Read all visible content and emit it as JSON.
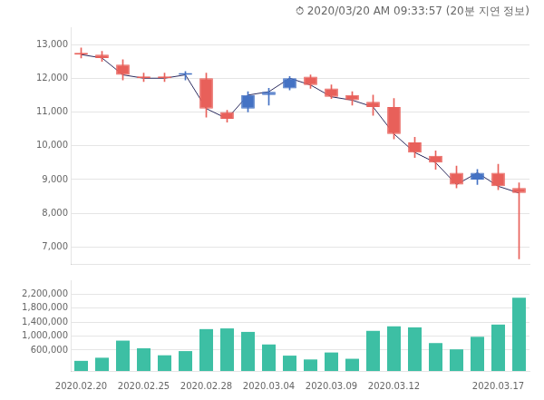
{
  "chart_data": [
    {
      "type": "candlestick",
      "title": "⏱ 2020/03/20 AM 09:33:57 (20분 지연 정보)",
      "categories": [
        null,
        null,
        null,
        null,
        null,
        null,
        null,
        null,
        null,
        null,
        null,
        null,
        null,
        null,
        null,
        null,
        null,
        null,
        null,
        null,
        null,
        null
      ],
      "series": [
        {
          "type": "candlestick",
          "open": [
            12750,
            12700,
            12400,
            12050,
            12050,
            12100,
            12000,
            11000,
            11100,
            11500,
            11700,
            12050,
            11700,
            11500,
            11300,
            11150,
            10100,
            9700,
            9200,
            9000,
            9200,
            8750
          ],
          "high": [
            12900,
            12800,
            12550,
            12150,
            12150,
            12200,
            12150,
            11050,
            11600,
            11700,
            12050,
            12100,
            11800,
            11600,
            11500,
            11400,
            10250,
            9850,
            9400,
            9300,
            9450,
            8900
          ],
          "low": [
            12600,
            12500,
            11950,
            11900,
            11900,
            11950,
            10850,
            10700,
            11000,
            11200,
            11650,
            11700,
            11400,
            11200,
            10900,
            10200,
            9650,
            9300,
            8750,
            8850,
            8700,
            6650
          ],
          "close": [
            12700,
            12600,
            12100,
            12000,
            12000,
            12100,
            11100,
            10800,
            11500,
            11600,
            12000,
            11800,
            11450,
            11350,
            11150,
            10350,
            9800,
            9500,
            8850,
            9200,
            8800,
            8600
          ],
          "colors": [
            "#E8605A",
            "#E8605A",
            "#E8605A",
            "#E8605A",
            "#E8605A",
            "#4472C4",
            "#E8605A",
            "#E8605A",
            "#4472C4",
            "#4472C4",
            "#4472C4",
            "#E8605A",
            "#E8605A",
            "#E8605A",
            "#E8605A",
            "#E8605A",
            "#E8605A",
            "#E8605A",
            "#E8605A",
            "#4472C4",
            "#E8605A",
            "#E8605A"
          ]
        },
        {
          "type": "line",
          "values": [
            12700,
            12600,
            12100,
            12000,
            12000,
            12100,
            11100,
            10800,
            11500,
            11600,
            12000,
            11800,
            11450,
            11350,
            11150,
            10350,
            9800,
            9500,
            8850,
            9200,
            8800,
            8600
          ],
          "color": "#2B2B5E"
        }
      ],
      "ylim": [
        6500,
        13500
      ],
      "yticks": [
        {
          "value": 7000,
          "label": "7,000"
        },
        {
          "value": 8000,
          "label": "8,000"
        },
        {
          "value": 9000,
          "label": "9,000"
        },
        {
          "value": 10000,
          "label": "10,000"
        },
        {
          "value": 11000,
          "label": "11,000"
        },
        {
          "value": 12000,
          "label": "12,000"
        },
        {
          "value": 13000,
          "label": "13,000"
        }
      ],
      "grid": true,
      "tick_labels": "y"
    },
    {
      "type": "bar",
      "categories": [
        "2020.02.20",
        null,
        null,
        "2020.02.25",
        null,
        null,
        "2020.02.28",
        null,
        null,
        "2020.03.04",
        null,
        null,
        "2020.03.09",
        null,
        null,
        "2020.03.12",
        null,
        null,
        null,
        null,
        "2020.03.17",
        null
      ],
      "values": [
        290000,
        380000,
        870000,
        650000,
        450000,
        570000,
        1200000,
        1220000,
        1120000,
        760000,
        440000,
        330000,
        530000,
        350000,
        1150000,
        1280000,
        1250000,
        800000,
        620000,
        980000,
        1330000,
        2100000
      ],
      "color": "#3DBFA4",
      "ylim": [
        0,
        2600000
      ],
      "yticks": [
        {
          "value": 600000,
          "label": "600,000"
        },
        {
          "value": 1000000,
          "label": "1,000,000"
        },
        {
          "value": 1400000,
          "label": "1,400,000"
        },
        {
          "value": 1800000,
          "label": "1,800,000"
        },
        {
          "value": 2200000,
          "label": "2,200,000"
        }
      ],
      "grid": true
    }
  ]
}
